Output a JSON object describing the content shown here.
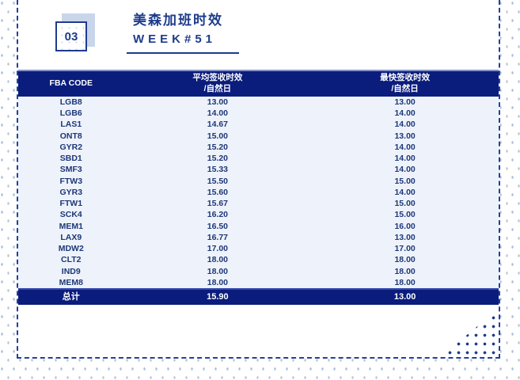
{
  "header": {
    "badge_number": "03",
    "title_line1": "美森加班时效",
    "title_line2": "WEEK#51"
  },
  "colors": {
    "navy_dark": "#0a1d7c",
    "navy_text": "#1e3c8c",
    "row_bg": "#eef2fa",
    "badge_shadow": "#c9d5eb"
  },
  "table": {
    "columns": [
      {
        "line1": "FBA CODE",
        "line2": ""
      },
      {
        "line1": "平均签收时效",
        "line2": "/自然日"
      },
      {
        "line1": "最快签收时效",
        "line2": "/自然日"
      }
    ],
    "rows": [
      {
        "code": "LGB8",
        "avg": "13.00",
        "fastest": "13.00"
      },
      {
        "code": "LGB6",
        "avg": "14.00",
        "fastest": "14.00"
      },
      {
        "code": "LAS1",
        "avg": "14.67",
        "fastest": "14.00"
      },
      {
        "code": "ONT8",
        "avg": "15.00",
        "fastest": "13.00"
      },
      {
        "code": "GYR2",
        "avg": "15.20",
        "fastest": "14.00"
      },
      {
        "code": "SBD1",
        "avg": "15.20",
        "fastest": "14.00"
      },
      {
        "code": "SMF3",
        "avg": "15.33",
        "fastest": "14.00"
      },
      {
        "code": "FTW3",
        "avg": "15.50",
        "fastest": "15.00"
      },
      {
        "code": "GYR3",
        "avg": "15.60",
        "fastest": "14.00"
      },
      {
        "code": "FTW1",
        "avg": "15.67",
        "fastest": "15.00"
      },
      {
        "code": "SCK4",
        "avg": "16.20",
        "fastest": "15.00"
      },
      {
        "code": "MEM1",
        "avg": "16.50",
        "fastest": "16.00"
      },
      {
        "code": "LAX9",
        "avg": "16.77",
        "fastest": "13.00"
      },
      {
        "code": "MDW2",
        "avg": "17.00",
        "fastest": "17.00"
      },
      {
        "code": "CLT2",
        "avg": "18.00",
        "fastest": "18.00"
      },
      {
        "code": "IND9",
        "avg": "18.00",
        "fastest": "18.00"
      },
      {
        "code": "MEM8",
        "avg": "18.00",
        "fastest": "18.00"
      }
    ],
    "total": {
      "label": "总计",
      "avg": "15.90",
      "fastest": "13.00"
    }
  }
}
